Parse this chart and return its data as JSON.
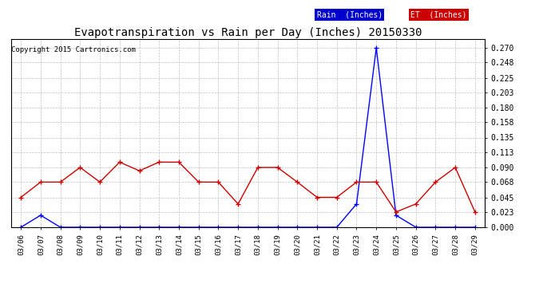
{
  "title": "Evapotranspiration vs Rain per Day (Inches) 20150330",
  "copyright": "Copyright 2015 Cartronics.com",
  "dates": [
    "03/06",
    "03/07",
    "03/08",
    "03/09",
    "03/10",
    "03/11",
    "03/12",
    "03/13",
    "03/14",
    "03/15",
    "03/16",
    "03/17",
    "03/18",
    "03/19",
    "03/20",
    "03/21",
    "03/22",
    "03/23",
    "03/24",
    "03/25",
    "03/26",
    "03/27",
    "03/28",
    "03/29"
  ],
  "rain": [
    0.0,
    0.018,
    0.0,
    0.0,
    0.0,
    0.0,
    0.0,
    0.0,
    0.0,
    0.0,
    0.0,
    0.0,
    0.0,
    0.0,
    0.0,
    0.0,
    0.0,
    0.035,
    0.27,
    0.018,
    0.0,
    0.0,
    0.0,
    0.0
  ],
  "et": [
    0.045,
    0.068,
    0.068,
    0.09,
    0.068,
    0.098,
    0.085,
    0.098,
    0.098,
    0.068,
    0.068,
    0.035,
    0.09,
    0.09,
    0.068,
    0.045,
    0.045,
    0.068,
    0.068,
    0.023,
    0.035,
    0.068,
    0.09,
    0.023
  ],
  "ylim": [
    0.0,
    0.2835
  ],
  "yticks": [
    0.0,
    0.023,
    0.045,
    0.068,
    0.09,
    0.113,
    0.135,
    0.158,
    0.18,
    0.203,
    0.225,
    0.248,
    0.27
  ],
  "rain_color": "#0000ff",
  "et_color": "#cc0000",
  "background_color": "#ffffff",
  "grid_color": "#bbbbbb",
  "title_fontsize": 10,
  "legend_rain_bg": "#0000cc",
  "legend_et_bg": "#cc0000"
}
